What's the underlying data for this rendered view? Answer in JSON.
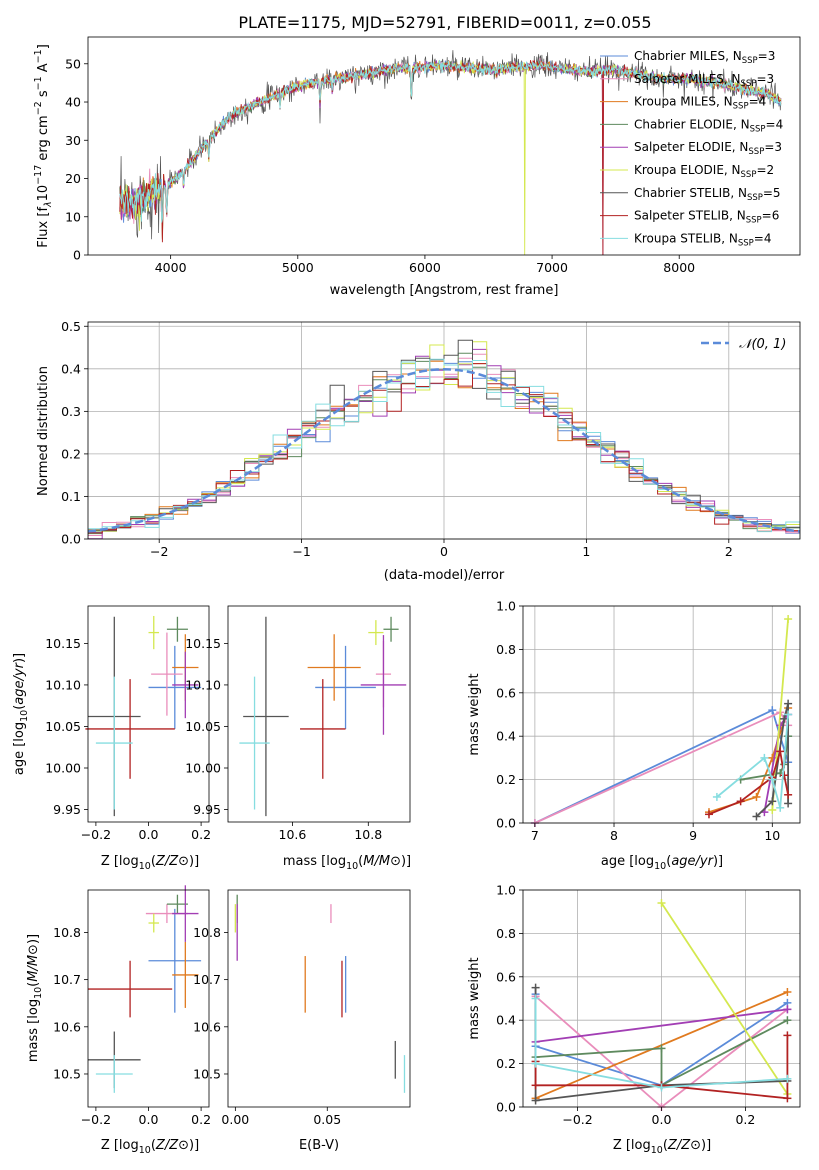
{
  "title": "PLATE=1175, MJD=52791, FIBERID=0011, z=0.055",
  "models": [
    {
      "label": "Chabrier MILES, N_SSP=3",
      "pre": "Chabrier MILES, N",
      "sub": "SSP",
      "post": "=3",
      "color": "#5b8bd9"
    },
    {
      "label": "Salpeter MILES, N_SSP=3",
      "pre": "Salpeter MILES, N",
      "sub": "SSP",
      "post": "=3",
      "color": "#e98dbb"
    },
    {
      "label": "Kroupa MILES, N_SSP=4",
      "pre": "Kroupa MILES, N",
      "sub": "SSP",
      "post": "=4",
      "color": "#e07a1f"
    },
    {
      "label": "Chabrier ELODIE, N_SSP=4",
      "pre": "Chabrier ELODIE, N",
      "sub": "SSP",
      "post": "=4",
      "color": "#5e8a5e"
    },
    {
      "label": "Salpeter ELODIE, N_SSP=3",
      "pre": "Salpeter ELODIE, N",
      "sub": "SSP",
      "post": "=3",
      "color": "#a23eb4"
    },
    {
      "label": "Kroupa ELODIE, N_SSP=2",
      "pre": "Kroupa ELODIE, N",
      "sub": "SSP",
      "post": "=2",
      "color": "#d4e84f"
    },
    {
      "label": "Chabrier STELIB, N_SSP=5",
      "pre": "Chabrier STELIB, N",
      "sub": "SSP",
      "post": "=5",
      "color": "#555555"
    },
    {
      "label": "Salpeter STELIB, N_SSP=6",
      "pre": "Salpeter STELIB, N",
      "sub": "SSP",
      "post": "=6",
      "color": "#b22222"
    },
    {
      "label": "Kroupa STELIB, N_SSP=4",
      "pre": "Kroupa STELIB, N",
      "sub": "SSP",
      "post": "=4",
      "color": "#86dde0"
    }
  ],
  "chart_data": [
    {
      "id": "spectrum",
      "type": "line",
      "xlabel": "wavelength [Angstrom, rest frame]",
      "ylabel_parts": [
        "Flux [f",
        "λ",
        "10",
        "−17",
        " erg cm",
        "−2",
        " s",
        "−1",
        " A",
        "−1",
        "]"
      ],
      "xlim": [
        3350,
        8950
      ],
      "ylim": [
        0,
        57
      ],
      "xticks": [
        4000,
        5000,
        6000,
        7000,
        8000
      ],
      "yticks": [
        0,
        10,
        20,
        30,
        40,
        50
      ],
      "continuum_x": [
        3600,
        3700,
        3800,
        3900,
        4000,
        4100,
        4200,
        4300,
        4400,
        4500,
        4700,
        4900,
        5100,
        5300,
        5500,
        5700,
        5900,
        6100,
        6300,
        6500,
        6700,
        6900,
        7100,
        7300,
        7500,
        7700,
        7900,
        8100,
        8300,
        8500,
        8700,
        8800
      ],
      "continuum_y": [
        13,
        14,
        15,
        17,
        19,
        22,
        26,
        30,
        34,
        37,
        40,
        43,
        45,
        46,
        47,
        48.5,
        49,
        49.5,
        49,
        48.5,
        49,
        49.5,
        48.5,
        48,
        48.5,
        47,
        46,
        46,
        45,
        43.5,
        42,
        40
      ],
      "absorption_lines": [
        {
          "x": 3934,
          "depth": 10
        },
        {
          "x": 3969,
          "depth": 8
        },
        {
          "x": 4102,
          "depth": 4
        },
        {
          "x": 4300,
          "depth": 5
        },
        {
          "x": 4861,
          "depth": 3
        },
        {
          "x": 5175,
          "depth": 6
        },
        {
          "x": 5270,
          "depth": 3
        },
        {
          "x": 5893,
          "depth": 8
        },
        {
          "x": 6563,
          "depth": 2
        }
      ],
      "data_gap": {
        "x": 6780,
        "drop_to": 0
      },
      "data_gap2": {
        "x": 7400,
        "drop_to": 0
      },
      "legend_loc": "lower right"
    },
    {
      "id": "residual-hist",
      "type": "bar",
      "xlabel": "(data-model)/error",
      "ylabel": "Normed distribution",
      "xlim": [
        -2.5,
        2.5
      ],
      "ylim": [
        0,
        0.51
      ],
      "xticks": [
        -2,
        -1,
        0,
        1,
        2
      ],
      "yticks": [
        0.0,
        0.1,
        0.2,
        0.3,
        0.4,
        0.5
      ],
      "bin_width": 0.1,
      "gaussian_label_pre": "𝒩(0, 1)",
      "gaussian": {
        "mean": 0,
        "sigma": 1
      },
      "legend_loc": "upper right",
      "grid": true
    },
    {
      "id": "age-vs-Z",
      "type": "scatter",
      "xlabel": "Z [log10(Z/Z⊙)]",
      "ylabel": "age  [log10(age/yr)]",
      "xlim": [
        -0.23,
        0.23
      ],
      "ylim": [
        9.935,
        10.195
      ],
      "xticks": [
        -0.2,
        0.0,
        0.2
      ],
      "yticks": [
        9.95,
        10.0,
        10.05,
        10.1,
        10.15
      ],
      "points": [
        {
          "x": 0.1,
          "y": 10.097,
          "xerr": 0.1,
          "yerr": 0.05
        },
        {
          "x": 0.07,
          "y": 10.113,
          "xerr": 0.06,
          "yerr": 0.05
        },
        {
          "x": 0.14,
          "y": 10.121,
          "xerr": 0.05,
          "yerr": 0.04
        },
        {
          "x": 0.11,
          "y": 10.167,
          "xerr": 0.04,
          "yerr": 0.015
        },
        {
          "x": 0.14,
          "y": 10.1,
          "xerr": 0.05,
          "yerr": 0.04
        },
        {
          "x": 0.02,
          "y": 10.163,
          "xerr": 0.02,
          "yerr": 0.02
        },
        {
          "x": -0.13,
          "y": 10.062,
          "xerr": 0.1,
          "yerr": 0.12
        },
        {
          "x": -0.07,
          "y": 10.047,
          "xerr": 0.17,
          "yerr": 0.06
        },
        {
          "x": -0.13,
          "y": 10.03,
          "xerr": 0.07,
          "yerr": 0.08
        }
      ]
    },
    {
      "id": "age-vs-mass",
      "type": "scatter",
      "xlabel": "mass [log10(M/M⊙)]",
      "ylabel": "",
      "xlim": [
        10.43,
        10.91
      ],
      "ylim": [
        9.935,
        10.195
      ],
      "xticks": [
        10.6,
        10.8
      ],
      "yticks": [
        9.95,
        10.0,
        10.05,
        10.1,
        10.15
      ],
      "points": [
        {
          "x": 10.74,
          "y": 10.097,
          "xerr": 0.08,
          "yerr": 0.05
        },
        {
          "x": 10.84,
          "y": 10.113,
          "xerr": 0.02,
          "yerr": 0.04
        },
        {
          "x": 10.71,
          "y": 10.121,
          "xerr": 0.07,
          "yerr": 0.04
        },
        {
          "x": 10.86,
          "y": 10.167,
          "xerr": 0.02,
          "yerr": 0.015
        },
        {
          "x": 10.84,
          "y": 10.1,
          "xerr": 0.06,
          "yerr": 0.06
        },
        {
          "x": 10.82,
          "y": 10.163,
          "xerr": 0.02,
          "yerr": 0.015
        },
        {
          "x": 10.53,
          "y": 10.062,
          "xerr": 0.06,
          "yerr": 0.12
        },
        {
          "x": 10.68,
          "y": 10.047,
          "xerr": 0.06,
          "yerr": 0.06
        },
        {
          "x": 10.5,
          "y": 10.03,
          "xerr": 0.04,
          "yerr": 0.08
        }
      ]
    },
    {
      "id": "mass-vs-Z",
      "type": "scatter",
      "xlabel": "Z [log10(Z/Z⊙)]",
      "ylabel": "mass [log10(M/M⊙)]",
      "xlim": [
        -0.23,
        0.23
      ],
      "ylim": [
        10.43,
        10.89
      ],
      "xticks": [
        -0.2,
        0.0,
        0.2
      ],
      "yticks": [
        10.5,
        10.6,
        10.7,
        10.8
      ],
      "points": [
        {
          "x": 0.1,
          "y": 10.74,
          "xerr": 0.1,
          "yerr": 0.11
        },
        {
          "x": 0.07,
          "y": 10.84,
          "xerr": 0.08,
          "yerr": 0.02
        },
        {
          "x": 0.14,
          "y": 10.71,
          "xerr": 0.05,
          "yerr": 0.07
        },
        {
          "x": 0.11,
          "y": 10.86,
          "xerr": 0.04,
          "yerr": 0.02
        },
        {
          "x": 0.14,
          "y": 10.84,
          "xerr": 0.05,
          "yerr": 0.06
        },
        {
          "x": 0.02,
          "y": 10.82,
          "xerr": 0.02,
          "yerr": 0.02
        },
        {
          "x": -0.13,
          "y": 10.53,
          "xerr": 0.1,
          "yerr": 0.06
        },
        {
          "x": -0.07,
          "y": 10.68,
          "xerr": 0.16,
          "yerr": 0.06
        },
        {
          "x": -0.13,
          "y": 10.5,
          "xerr": 0.07,
          "yerr": 0.04
        }
      ]
    },
    {
      "id": "mass-vs-EBV",
      "type": "scatter",
      "xlabel": "E(B-V)",
      "ylabel": "",
      "xlim": [
        -0.004,
        0.095
      ],
      "ylim": [
        10.43,
        10.89
      ],
      "xticks": [
        0.0,
        0.05
      ],
      "yticks": [
        10.5,
        10.6,
        10.7,
        10.8
      ],
      "points": [
        {
          "x": 0.06,
          "y": 10.69,
          "xerr": 0,
          "yerr": 0.06
        },
        {
          "x": 0.052,
          "y": 10.84,
          "xerr": 0,
          "yerr": 0.02
        },
        {
          "x": 0.038,
          "y": 10.69,
          "xerr": 0,
          "yerr": 0.06
        },
        {
          "x": 0.001,
          "y": 10.85,
          "xerr": 0,
          "yerr": 0.03
        },
        {
          "x": 0.001,
          "y": 10.8,
          "xerr": 0,
          "yerr": 0.06
        },
        {
          "x": 0.0,
          "y": 10.83,
          "xerr": 0,
          "yerr": 0.03
        },
        {
          "x": 0.087,
          "y": 10.53,
          "xerr": 0,
          "yerr": 0.04
        },
        {
          "x": 0.058,
          "y": 10.68,
          "xerr": 0,
          "yerr": 0.06
        },
        {
          "x": 0.092,
          "y": 10.5,
          "xerr": 0,
          "yerr": 0.04
        }
      ]
    },
    {
      "id": "massweight-vs-age",
      "type": "line",
      "xlabel": "age  [log10(age/yr)]",
      "ylabel": "mass weight",
      "xlim": [
        6.85,
        10.35
      ],
      "ylim": [
        0,
        1.0
      ],
      "xticks": [
        7,
        8,
        9,
        10
      ],
      "yticks": [
        0.0,
        0.2,
        0.4,
        0.6,
        0.8,
        1.0
      ],
      "grid": true,
      "series": [
        {
          "x": [
            7.0,
            10.0,
            10.2
          ],
          "y": [
            0.0,
            0.52,
            0.28
          ]
        },
        {
          "x": [
            7.0,
            10.1,
            10.2
          ],
          "y": [
            0.0,
            0.51,
            0.45
          ]
        },
        {
          "x": [
            9.2,
            9.8,
            10.0,
            10.2
          ],
          "y": [
            0.05,
            0.12,
            0.3,
            0.53
          ]
        },
        {
          "x": [
            9.6,
            10.1,
            10.15,
            10.2
          ],
          "y": [
            0.2,
            0.23,
            0.27,
            0.4
          ]
        },
        {
          "x": [
            9.9,
            10.1,
            10.2
          ],
          "y": [
            0.05,
            0.45,
            0.5
          ]
        },
        {
          "x": [
            10.0,
            10.2
          ],
          "y": [
            0.06,
            0.94
          ]
        },
        {
          "x": [
            9.8,
            10.0,
            10.15,
            10.2,
            10.2
          ],
          "y": [
            0.03,
            0.1,
            0.48,
            0.55,
            0.09
          ]
        },
        {
          "x": [
            9.2,
            9.6,
            10.0,
            10.1,
            10.15,
            10.2
          ],
          "y": [
            0.04,
            0.1,
            0.21,
            0.33,
            0.22,
            0.13
          ]
        },
        {
          "x": [
            9.3,
            9.9,
            10.0,
            10.1,
            10.2
          ],
          "y": [
            0.12,
            0.3,
            0.2,
            0.07,
            0.5
          ]
        }
      ]
    },
    {
      "id": "massweight-vs-Z",
      "type": "line",
      "xlabel": "Z [log10(Z/Z⊙)]",
      "ylabel": "mass weight",
      "xlim": [
        -0.33,
        0.33
      ],
      "ylim": [
        0,
        1.0
      ],
      "xticks": [
        -0.2,
        0.0,
        0.2
      ],
      "yticks": [
        0.0,
        0.2,
        0.4,
        0.6,
        0.8,
        1.0
      ],
      "grid": true,
      "series": [
        {
          "x": [
            -0.3,
            -0.3,
            0.0,
            0.3
          ],
          "y": [
            0.52,
            0.28,
            0.1,
            0.48
          ]
        },
        {
          "x": [
            -0.3,
            0.0,
            0.3
          ],
          "y": [
            0.51,
            0.0,
            0.45
          ]
        },
        {
          "x": [
            -0.3,
            0.3
          ],
          "y": [
            0.04,
            0.53
          ]
        },
        {
          "x": [
            -0.3,
            0.0,
            0.0,
            0.3
          ],
          "y": [
            0.23,
            0.27,
            0.1,
            0.4
          ]
        },
        {
          "x": [
            -0.3,
            0.3
          ],
          "y": [
            0.3,
            0.45
          ]
        },
        {
          "x": [
            0.0,
            0.3
          ],
          "y": [
            0.94,
            0.06
          ]
        },
        {
          "x": [
            -0.3,
            -0.3,
            0.0,
            0.3
          ],
          "y": [
            0.55,
            0.03,
            0.1,
            0.12
          ]
        },
        {
          "x": [
            -0.3,
            -0.3,
            0.0,
            0.3,
            0.3
          ],
          "y": [
            0.21,
            0.1,
            0.1,
            0.04,
            0.33
          ]
        },
        {
          "x": [
            -0.3,
            -0.3,
            0.0,
            0.3
          ],
          "y": [
            0.5,
            0.2,
            0.09,
            0.13
          ]
        }
      ]
    }
  ]
}
